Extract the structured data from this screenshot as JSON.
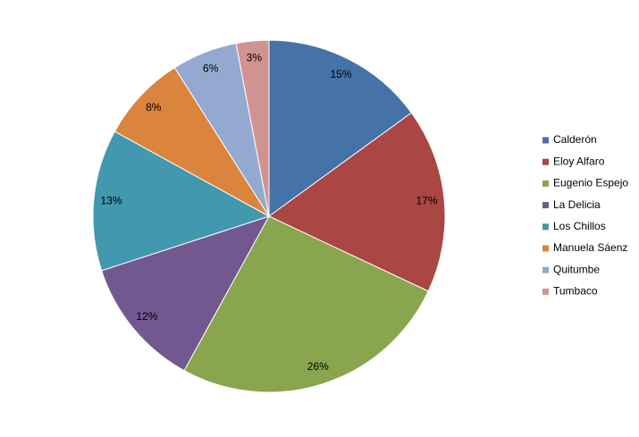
{
  "chart_data": {
    "type": "pie",
    "categories": [
      "Calderón",
      "Eloy Alfaro",
      "Eugenio Espejo",
      "La Delicia",
      "Los Chillos",
      "Manuela Sáenz",
      "Quitumbe",
      "Tumbaco"
    ],
    "values": [
      15,
      17,
      26,
      12,
      13,
      8,
      6,
      3
    ],
    "value_labels": [
      "15%",
      "17%",
      "26%",
      "12%",
      "13%",
      "8%",
      "6%",
      "3%"
    ],
    "colors": [
      "#4572a7",
      "#aa4643",
      "#89a54e",
      "#71588f",
      "#4198af",
      "#db843d",
      "#93a9cf",
      "#d19392"
    ],
    "legend": "right"
  }
}
